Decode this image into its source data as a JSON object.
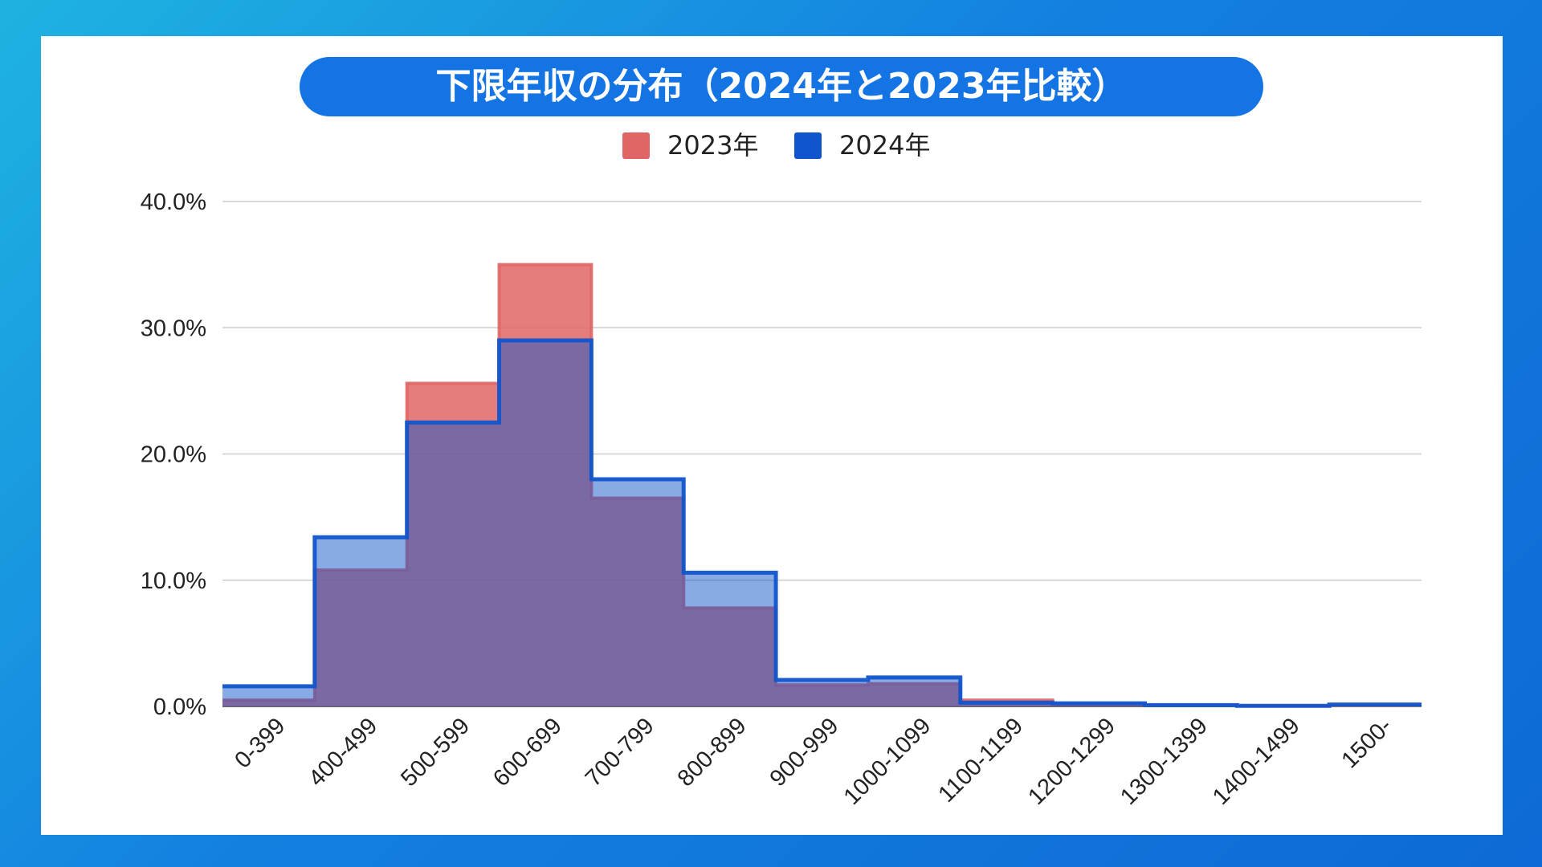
{
  "colors": {
    "series_2023": "#e06666",
    "series_2024": "#1155cc",
    "title_bg": "#1474e4",
    "gridline": "#cccccc"
  },
  "chart_data": {
    "type": "area",
    "title": "下限年収の分布（2024年と2023年比較）",
    "categories": [
      "0-399",
      "400-499",
      "500-599",
      "600-699",
      "700-799",
      "800-899",
      "900-999",
      "1000-1099",
      "1100-1199",
      "1200-1299",
      "1300-1399",
      "1400-1499",
      "1500-"
    ],
    "series": [
      {
        "name": "2023年",
        "color": "#e06666",
        "values": [
          0.5,
          10.8,
          25.6,
          35.0,
          16.5,
          7.8,
          1.7,
          1.8,
          0.5,
          0.2,
          0.1,
          0.05,
          0.1
        ]
      },
      {
        "name": "2024年",
        "color": "#1155cc",
        "values": [
          1.6,
          13.4,
          22.5,
          29.0,
          18.0,
          10.6,
          2.1,
          2.3,
          0.3,
          0.25,
          0.1,
          0.05,
          0.15
        ]
      }
    ],
    "ylim": [
      0,
      40
    ],
    "yticks": [
      "0.0%",
      "10.0%",
      "20.0%",
      "30.0%",
      "40.0%"
    ],
    "ytick_values": [
      0,
      10,
      20,
      30,
      40
    ],
    "grid": true,
    "legend_position": "top-center",
    "xlabel": "",
    "ylabel": ""
  }
}
